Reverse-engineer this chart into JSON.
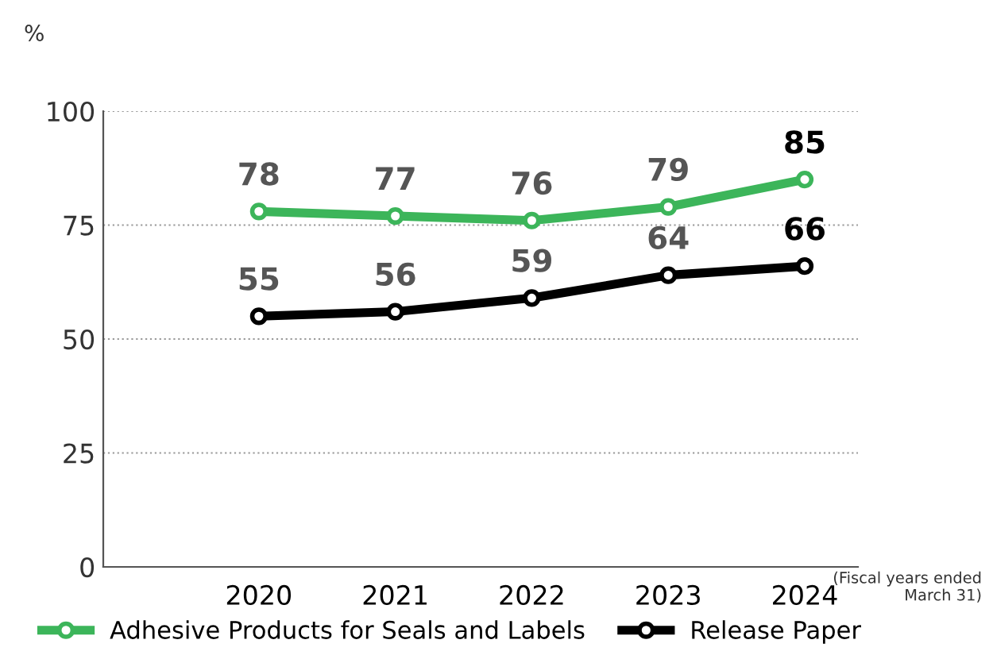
{
  "chart_data": {
    "type": "line",
    "ylabel": "%",
    "categories": [
      "2020",
      "2021",
      "2022",
      "2023",
      "2024"
    ],
    "series": [
      {
        "name": "Adhesive Products for Seals and Labels",
        "color": "#3cb55a",
        "values": [
          78,
          77,
          76,
          79,
          85
        ]
      },
      {
        "name": "Release Paper",
        "color": "#000000",
        "values": [
          55,
          56,
          59,
          64,
          66
        ]
      }
    ],
    "ylim": [
      0,
      100
    ],
    "yticks": [
      0,
      25,
      50,
      75,
      100
    ],
    "grid": "y",
    "legend": "bottom",
    "marker": "circle",
    "line_style": "solid",
    "data_labels": true,
    "annotations": [
      "(Fiscal years ended\nMarch 31)"
    ]
  }
}
